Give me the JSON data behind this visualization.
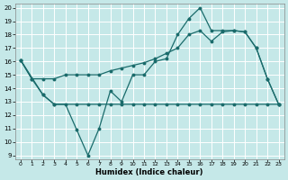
{
  "xlabel": "Humidex (Indice chaleur)",
  "bg_color": "#c5e8e8",
  "grid_color": "#ffffff",
  "line_color": "#1a6b6b",
  "x_ticks": [
    0,
    1,
    2,
    3,
    4,
    5,
    6,
    7,
    8,
    9,
    10,
    11,
    12,
    13,
    14,
    15,
    16,
    17,
    18,
    19,
    20,
    21,
    22,
    23
  ],
  "y_ticks": [
    9,
    10,
    11,
    12,
    13,
    14,
    15,
    16,
    17,
    18,
    19,
    20
  ],
  "xlim": [
    -0.5,
    23.5
  ],
  "ylim": [
    8.7,
    20.3
  ],
  "line1_x": [
    0,
    1,
    2,
    3,
    4,
    5,
    6,
    7,
    8,
    9,
    10,
    11,
    12,
    13,
    14,
    15,
    16,
    17,
    18,
    19,
    20,
    21,
    22,
    23
  ],
  "line1_y": [
    16.1,
    14.7,
    13.5,
    12.8,
    12.8,
    10.9,
    9.0,
    11.0,
    13.8,
    13.0,
    15.0,
    15.0,
    16.0,
    16.2,
    18.0,
    19.2,
    20.0,
    18.3,
    18.3,
    18.3,
    18.2,
    17.0,
    14.7,
    12.8
  ],
  "line2_x": [
    0,
    1,
    2,
    3,
    4,
    5,
    6,
    7,
    8,
    9,
    10,
    11,
    12,
    13,
    14,
    15,
    16,
    17,
    18,
    19,
    20,
    21,
    22,
    23
  ],
  "line2_y": [
    16.1,
    14.7,
    14.7,
    14.7,
    15.0,
    15.0,
    15.0,
    15.0,
    15.3,
    15.5,
    15.7,
    15.9,
    16.2,
    16.6,
    17.0,
    18.0,
    18.3,
    17.5,
    18.2,
    18.3,
    18.2,
    17.0,
    14.7,
    12.8
  ],
  "line3_x": [
    0,
    2,
    3,
    5,
    6,
    7,
    8,
    9,
    10,
    11,
    12,
    13,
    14,
    15,
    16,
    17,
    18,
    19,
    20,
    21,
    22,
    23
  ],
  "line3_y": [
    16.1,
    13.5,
    12.8,
    12.8,
    12.8,
    12.8,
    12.8,
    12.8,
    12.8,
    12.8,
    12.8,
    12.8,
    12.8,
    12.8,
    12.8,
    12.8,
    12.8,
    12.8,
    12.8,
    12.8,
    12.8,
    12.8
  ]
}
